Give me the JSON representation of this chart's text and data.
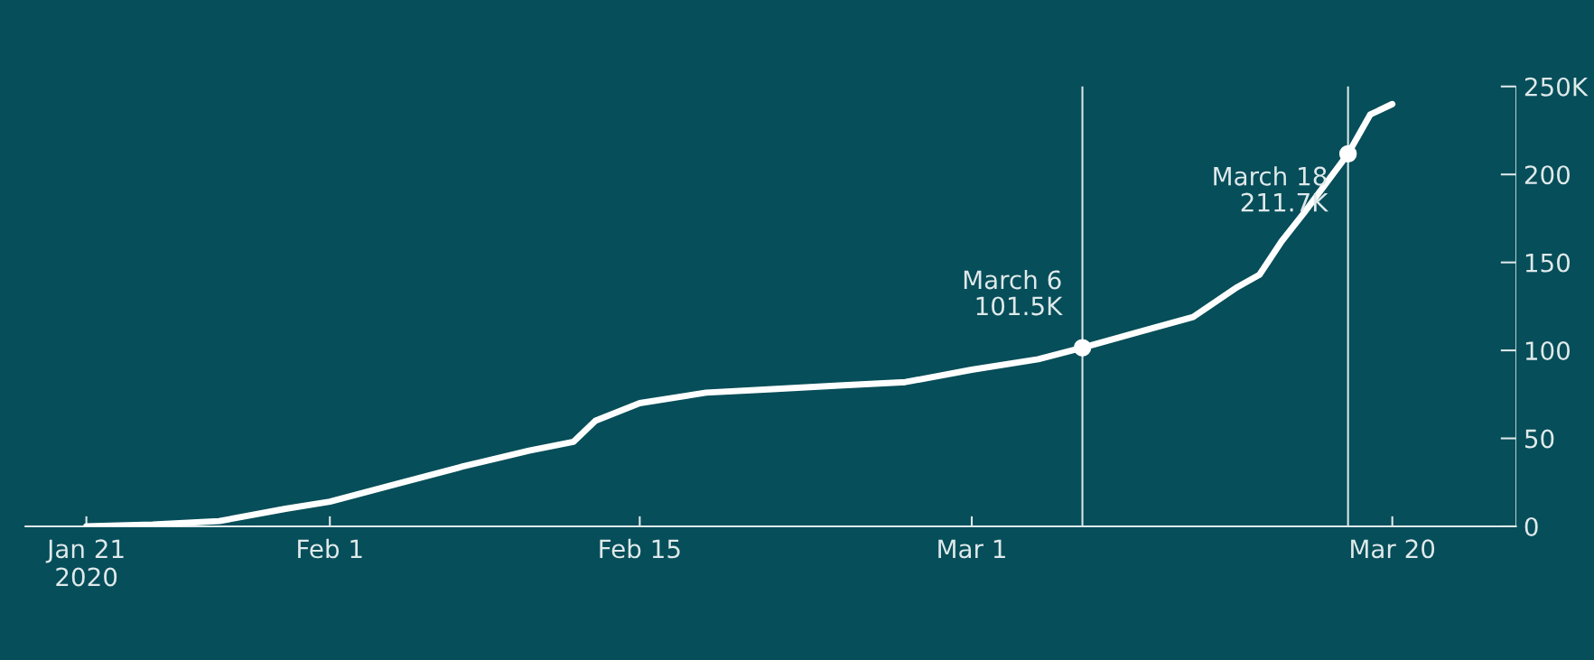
{
  "chart_data": {
    "type": "line",
    "x": [
      "2020-01-21",
      "2020-01-24",
      "2020-01-27",
      "2020-01-30",
      "2020-02-01",
      "2020-02-04",
      "2020-02-07",
      "2020-02-10",
      "2020-02-12",
      "2020-02-13",
      "2020-02-14",
      "2020-02-15",
      "2020-02-18",
      "2020-02-21",
      "2020-02-24",
      "2020-02-27",
      "2020-03-01",
      "2020-03-04",
      "2020-03-06",
      "2020-03-09",
      "2020-03-11",
      "2020-03-13",
      "2020-03-14",
      "2020-03-15",
      "2020-03-16",
      "2020-03-18",
      "2020-03-19",
      "2020-03-20"
    ],
    "series": [
      {
        "color": "#ffffff",
        "values": [
          0,
          1,
          3,
          10,
          14,
          24,
          34,
          43,
          48,
          60,
          65,
          70,
          76,
          78,
          80,
          82,
          89,
          95,
          101.5,
          112,
          119,
          136,
          143,
          162,
          178,
          211.7,
          234,
          240
        ]
      }
    ],
    "xlim": [
      "2020-01-18T06:00",
      "2020-03-25T14:00"
    ],
    "xticks": [
      {
        "value": "2020-01-21",
        "label": "Jan 21\n2020"
      },
      {
        "value": "2020-02-01",
        "label": "Feb 1"
      },
      {
        "value": "2020-02-15",
        "label": "Feb 15"
      },
      {
        "value": "2020-03-01",
        "label": "Mar 1"
      },
      {
        "value": "2020-03-20",
        "label": "Mar 20"
      }
    ],
    "ylim": [
      0,
      250
    ],
    "yticks": [
      0,
      50,
      100,
      150,
      200,
      {
        "value": 250,
        "label": "250K"
      }
    ],
    "ref_lines": [
      {
        "axis": "x",
        "value": "2020-03-06",
        "color": "#d9e6e8"
      },
      {
        "axis": "x",
        "value": "2020-03-18",
        "color": "#d9e6e8"
      }
    ],
    "annotations": [
      {
        "text": "March 6\n101.5K",
        "x": "2020-03-06",
        "y": 101.5
      },
      {
        "text": "March 18\n211.7K",
        "x": "2020-03-18",
        "y": 211.7
      }
    ],
    "grid": false,
    "legend": false,
    "marker": "none",
    "line_style": "solid"
  }
}
